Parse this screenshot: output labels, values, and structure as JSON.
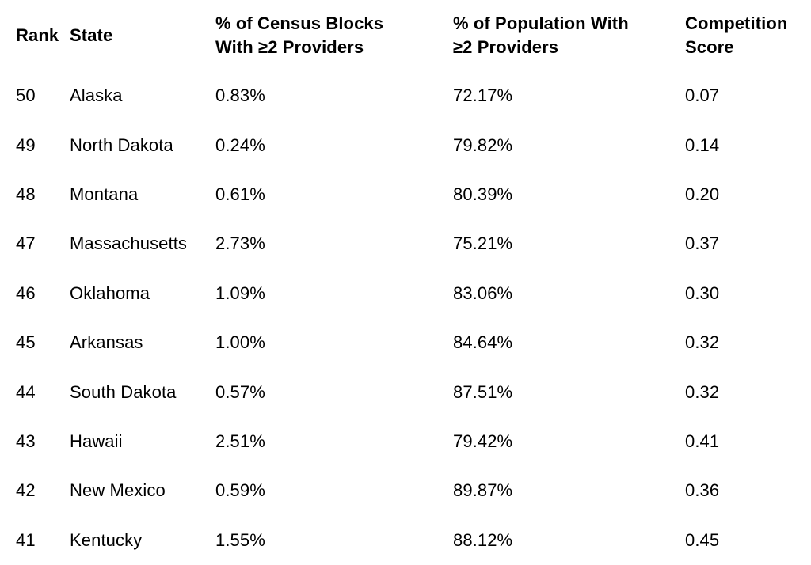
{
  "table": {
    "columns": [
      {
        "key": "rank",
        "label": "Rank"
      },
      {
        "key": "state",
        "label": "State"
      },
      {
        "key": "census_blocks",
        "label": "% of Census Blocks\nWith ≥2 Providers"
      },
      {
        "key": "population",
        "label": "% of Population With\n≥2 Providers"
      },
      {
        "key": "competition",
        "label": "Competition\nScore"
      }
    ],
    "rows": [
      {
        "rank": "50",
        "state": "Alaska",
        "census_blocks": "0.83%",
        "population": "72.17%",
        "competition": "0.07"
      },
      {
        "rank": "49",
        "state": "North Dakota",
        "census_blocks": "0.24%",
        "population": "79.82%",
        "competition": "0.14"
      },
      {
        "rank": "48",
        "state": "Montana",
        "census_blocks": "0.61%",
        "population": "80.39%",
        "competition": "0.20"
      },
      {
        "rank": "47",
        "state": "Massachusetts",
        "census_blocks": "2.73%",
        "population": "75.21%",
        "competition": "0.37"
      },
      {
        "rank": "46",
        "state": "Oklahoma",
        "census_blocks": "1.09%",
        "population": "83.06%",
        "competition": "0.30"
      },
      {
        "rank": "45",
        "state": "Arkansas",
        "census_blocks": "1.00%",
        "population": "84.64%",
        "competition": "0.32"
      },
      {
        "rank": "44",
        "state": "South Dakota",
        "census_blocks": "0.57%",
        "population": "87.51%",
        "competition": "0.32"
      },
      {
        "rank": "43",
        "state": "Hawaii",
        "census_blocks": "2.51%",
        "population": "79.42%",
        "competition": "0.41"
      },
      {
        "rank": "42",
        "state": "New Mexico",
        "census_blocks": "0.59%",
        "population": "89.87%",
        "competition": "0.36"
      },
      {
        "rank": "41",
        "state": "Kentucky",
        "census_blocks": "1.55%",
        "population": "88.12%",
        "competition": "0.45"
      }
    ]
  },
  "chart_data": {
    "type": "table",
    "title": "",
    "columns": [
      "Rank",
      "State",
      "% of Census Blocks With ≥2 Providers",
      "% of Population With ≥2 Providers",
      "Competition Score"
    ],
    "rows": [
      [
        50,
        "Alaska",
        "0.83%",
        "72.17%",
        0.07
      ],
      [
        49,
        "North Dakota",
        "0.24%",
        "79.82%",
        0.14
      ],
      [
        48,
        "Montana",
        "0.61%",
        "80.39%",
        0.2
      ],
      [
        47,
        "Massachusetts",
        "2.73%",
        "75.21%",
        0.37
      ],
      [
        46,
        "Oklahoma",
        "1.09%",
        "83.06%",
        0.3
      ],
      [
        45,
        "Arkansas",
        "1.00%",
        "84.64%",
        0.32
      ],
      [
        44,
        "South Dakota",
        "0.57%",
        "87.51%",
        0.32
      ],
      [
        43,
        "Hawaii",
        "2.51%",
        "79.42%",
        0.41
      ],
      [
        42,
        "New Mexico",
        "0.59%",
        "89.87%",
        0.36
      ],
      [
        41,
        "Kentucky",
        "1.55%",
        "88.12%",
        0.45
      ]
    ],
    "text_color": "#000000",
    "background_color": "#ffffff"
  }
}
